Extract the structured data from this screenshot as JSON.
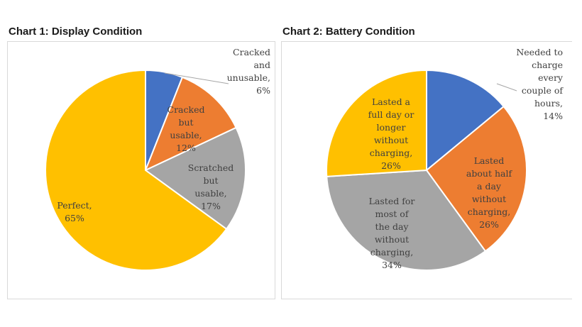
{
  "chart_data": [
    {
      "type": "pie",
      "title": "Chart 1: Display Condition",
      "slices": [
        {
          "label": "Cracked and unusable",
          "value": 6,
          "value_label": "6%",
          "color": "#4472C4"
        },
        {
          "label": "Cracked but usable",
          "value": 12,
          "value_label": "12%",
          "color": "#ED7D31"
        },
        {
          "label": "Scratched but usable",
          "value": 17,
          "value_label": "17%",
          "color": "#A5A5A5"
        },
        {
          "label": "Perfect",
          "value": 65,
          "value_label": "65%",
          "color": "#FFC000"
        }
      ]
    },
    {
      "type": "pie",
      "title": "Chart 2: Battery Condition",
      "slices": [
        {
          "label": "Needed to charge every couple of hours",
          "value": 14,
          "value_label": "14%",
          "color": "#4472C4"
        },
        {
          "label": "Lasted about half a day without charging",
          "value": 26,
          "value_label": "26%",
          "color": "#ED7D31"
        },
        {
          "label": "Lasted for most of the day without charging",
          "value": 34,
          "value_label": "34%",
          "color": "#A5A5A5"
        },
        {
          "label": "Lasted a full day or longer without charging",
          "value": 26,
          "value_label": "26%",
          "color": "#FFC000"
        }
      ]
    }
  ]
}
